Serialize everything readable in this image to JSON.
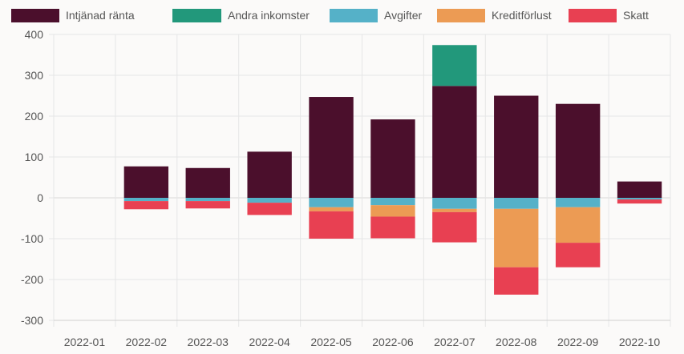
{
  "chart_data": {
    "type": "bar",
    "stacked": true,
    "categories": [
      "2022-01",
      "2022-02",
      "2022-03",
      "2022-04",
      "2022-05",
      "2022-06",
      "2022-07",
      "2022-08",
      "2022-09",
      "2022-10"
    ],
    "series": [
      {
        "name": "Intjänad ränta",
        "color": "#4b0f2c",
        "values": [
          0,
          77,
          73,
          113,
          247,
          192,
          274,
          250,
          230,
          40
        ]
      },
      {
        "name": "Andra inkomster",
        "color": "#22987b",
        "values": [
          0,
          0,
          0,
          0,
          0,
          0,
          100,
          0,
          0,
          0
        ]
      },
      {
        "name": "Avgifter",
        "color": "#55b1c8",
        "values": [
          0,
          -8,
          -8,
          -12,
          -23,
          -18,
          -27,
          -27,
          -23,
          -4
        ]
      },
      {
        "name": "Kreditförlust",
        "color": "#ec9b54",
        "values": [
          0,
          0,
          0,
          0,
          -10,
          -28,
          -8,
          -143,
          -87,
          0
        ]
      },
      {
        "name": "Skatt",
        "color": "#e84052",
        "values": [
          0,
          -20,
          -18,
          -30,
          -67,
          -53,
          -74,
          -67,
          -60,
          -10
        ]
      }
    ],
    "ylim": [
      -300,
      400
    ],
    "yticks": [
      "400",
      "300",
      "200",
      "100",
      "0",
      "-100",
      "-200",
      "-300"
    ],
    "grid": true,
    "legend_position": "top"
  }
}
